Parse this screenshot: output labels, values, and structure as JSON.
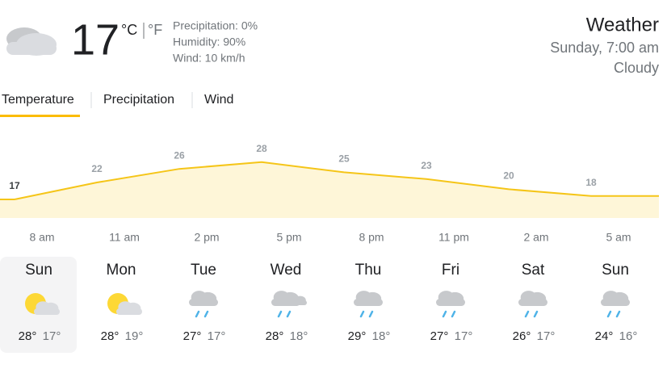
{
  "header": {
    "temperature": "17",
    "unit_c": "°C",
    "unit_f": "°F",
    "details": [
      "Precipitation: 0%",
      "Humidity: 90%",
      "Wind: 10 km/h"
    ],
    "title": "Weather",
    "datetime": "Sunday, 7:00 am",
    "condition": "Cloudy"
  },
  "tabs": [
    "Temperature",
    "Precipitation",
    "Wind"
  ],
  "chart_data": {
    "type": "area",
    "categories": [
      "8 am",
      "11 am",
      "2 pm",
      "5 pm",
      "8 pm",
      "11 pm",
      "2 am",
      "5 am"
    ],
    "values": [
      17,
      22,
      26,
      28,
      25,
      23,
      20,
      18
    ],
    "color": "#f5c518"
  },
  "days": [
    {
      "name": "Sun",
      "high": "28°",
      "low": "17°"
    },
    {
      "name": "Mon",
      "high": "28°",
      "low": "19°"
    },
    {
      "name": "Tue",
      "high": "27°",
      "low": "17°"
    },
    {
      "name": "Wed",
      "high": "28°",
      "low": "18°"
    },
    {
      "name": "Thu",
      "high": "29°",
      "low": "18°"
    },
    {
      "name": "Fri",
      "high": "27°",
      "low": "17°"
    },
    {
      "name": "Sat",
      "high": "26°",
      "low": "17°"
    },
    {
      "name": "Sun",
      "high": "24°",
      "low": "16°"
    }
  ]
}
